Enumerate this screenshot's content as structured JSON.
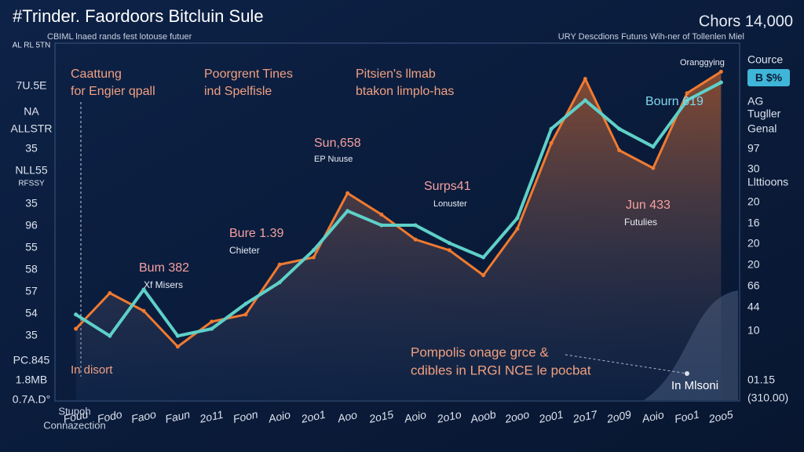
{
  "chart_data": {
    "type": "line",
    "title": "#Trinder. Faordoors Bitcluin Sule",
    "subtitle": "CBIML lnaed rands fest lotouse futuer",
    "top_right": "Chors 14,000",
    "top_right_subtitle": "URY Descdions Futuns Wih-ner of Tollenlen Miel",
    "bottom_left": [
      "Stupoh",
      "Connazection"
    ],
    "left_labels": [
      "AL RL 5TN",
      "7U.5E",
      "NA",
      "ALLSTR",
      "35",
      "NLL55",
      "RFSSY",
      "35",
      "96",
      "55",
      "58",
      "57",
      "54",
      "35",
      "PC.845",
      "1.8MB",
      "0.7A.D°"
    ],
    "right_labels": [
      "Cource",
      "B $%",
      "AG",
      "Tugller",
      "Genal",
      "97",
      "30",
      "Llttioons",
      "20",
      "16",
      "20",
      "20",
      "66",
      "44",
      "10",
      "01.15",
      "(310.00)"
    ],
    "annotations": [
      "Caattung",
      "for Engier qpall",
      "Poorgrent Tines",
      "ind Spelfisle",
      "Pitsien's llmab",
      "btakon limplo-has",
      "Sun,658",
      "EP Nuuse",
      "Surps41",
      "Lonuster",
      "Bure 1.39",
      "Chieter",
      "Bum 382",
      "Xf Misers",
      "Jun 433",
      "Futulies",
      "Bourn 619",
      "Oranggying",
      "Pompolis onage grce &",
      "cdibles in LRGI NCE le pocbat",
      "In Mlsoni",
      "In disort"
    ],
    "categories": [
      "Fouu",
      "Fodo",
      "Faoo",
      "Faun",
      "2o11",
      "Foon",
      "Aoio",
      "2oo1",
      "Aoo",
      "2o15",
      "Aoio",
      "2o1o",
      "Aoob",
      "2ooo",
      "2o01",
      "2o17",
      "2o09",
      "Aoio",
      "Foo1",
      "2oo5"
    ],
    "series": [
      {
        "color": "#f07a30",
        "values": [
          20,
          30,
          25,
          15,
          22,
          24,
          38,
          40,
          58,
          52,
          45,
          42,
          35,
          48,
          72,
          90,
          70,
          65,
          86,
          92
        ]
      },
      {
        "color": "#5fd0c8",
        "values": [
          24,
          18,
          31,
          18,
          20,
          27,
          33,
          42,
          53,
          49,
          49,
          44,
          40,
          51,
          76,
          84,
          76,
          71,
          84,
          89
        ]
      }
    ],
    "ylim": [
      0,
      100
    ]
  }
}
